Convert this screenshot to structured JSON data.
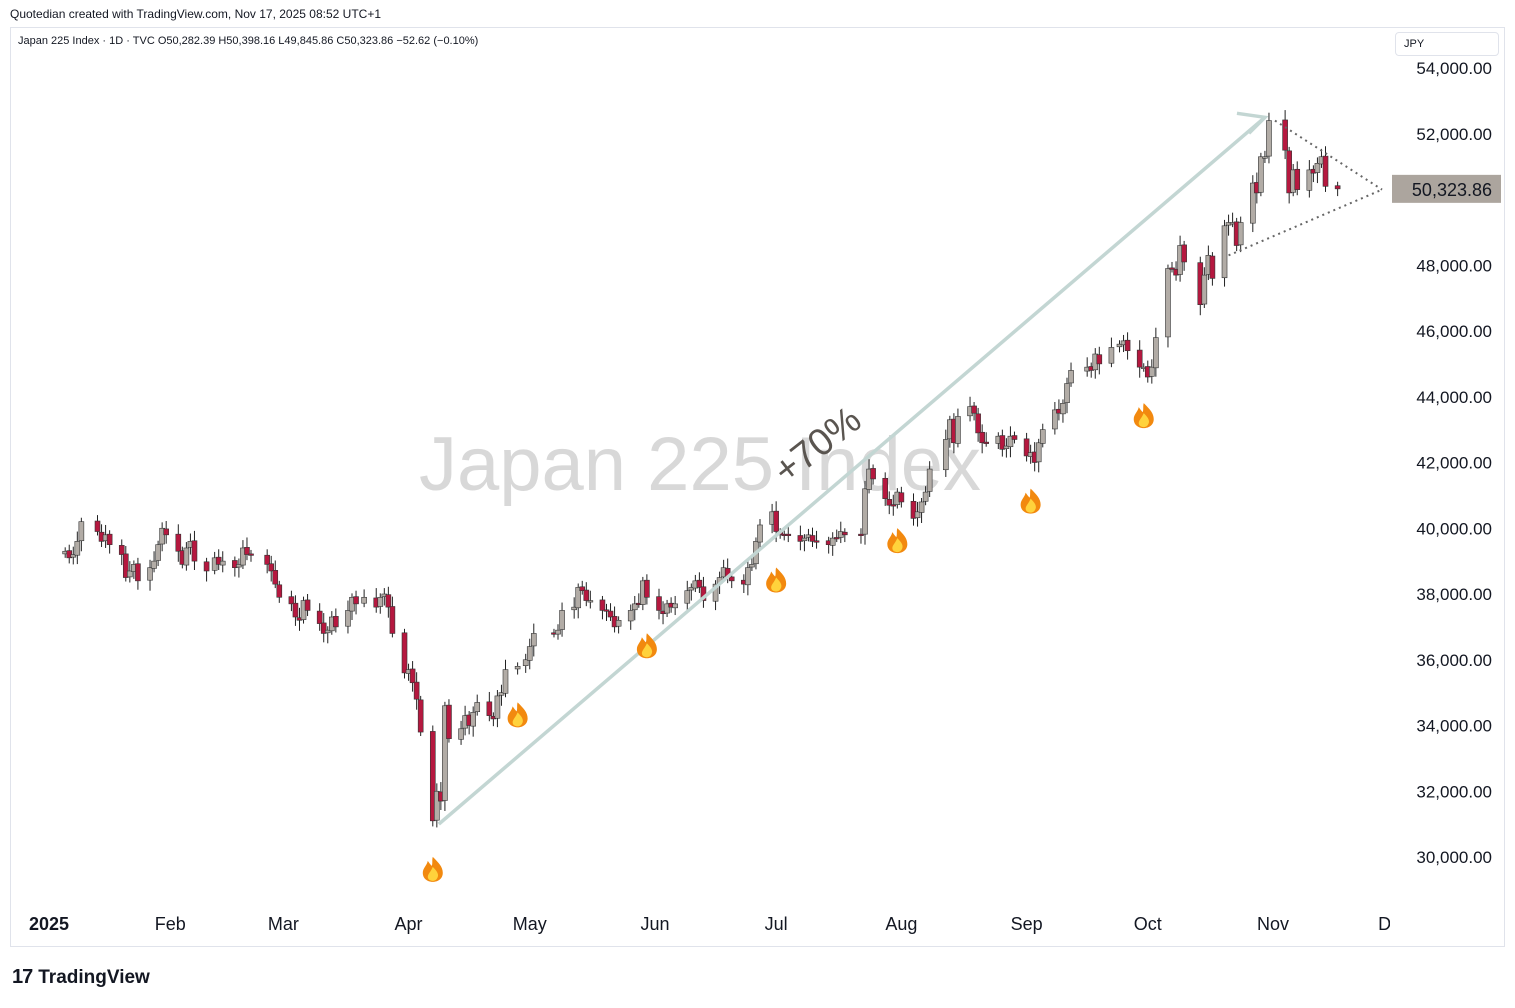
{
  "header": {
    "credit": "Quotedian created with TradingView.com, Nov 17, 2025 08:52 UTC+1",
    "legend": "Japan 225 Index · 1D · TVC  O50,282.39  H50,398.16  L49,845.86  C50,323.86  −52.62 (−0.10%)",
    "currency_button": "JPY"
  },
  "footer": {
    "brand": "TradingView",
    "logo_mark": "17"
  },
  "colors": {
    "up": "#b2aca6",
    "down": "#b5183f",
    "trend": "#c3d6d3",
    "watermark": "#d8d8d8",
    "price_tag": "#aca59e"
  },
  "chart_data": {
    "type": "candlestick",
    "title": "Japan 225 Index",
    "x_labels": [
      "2025",
      "Feb",
      "Mar",
      "Apr",
      "May",
      "Jun",
      "Jul",
      "Aug",
      "Sep",
      "Oct",
      "Nov",
      "Dec"
    ],
    "y_ticks": [
      "54,000.00",
      "52,000.00",
      "48,000.00",
      "46,000.00",
      "44,000.00",
      "42,000.00",
      "40,000.00",
      "38,000.00",
      "36,000.00",
      "34,000.00",
      "32,000.00",
      "30,000.00"
    ],
    "ylim": [
      28000,
      55200
    ],
    "last_price": 50323.86,
    "last_price_label": "50,323.86",
    "annotation": "+70%",
    "trend_line": {
      "from": [
        "2025-04-07",
        31000
      ],
      "to": [
        "2025-10-31",
        52500
      ]
    },
    "triangle": {
      "apex": [
        "2025-11-28",
        50300
      ],
      "upper_from": [
        "2025-10-31",
        52400
      ],
      "lower_from": [
        "2025-10-21",
        48300
      ]
    },
    "fire_markers": [
      "2025-04-07",
      "2025-04-28",
      "2025-05-30",
      "2025-07-01",
      "2025-07-31",
      "2025-09-02",
      "2025-09-30"
    ],
    "closes": [
      [
        "2025-01-06",
        39300
      ],
      [
        "2025-01-07",
        39100
      ],
      [
        "2025-01-08",
        39200
      ],
      [
        "2025-01-09",
        39600
      ],
      [
        "2025-01-10",
        40200
      ],
      [
        "2025-01-14",
        39900
      ],
      [
        "2025-01-15",
        39600
      ],
      [
        "2025-01-16",
        39800
      ],
      [
        "2025-01-17",
        39500
      ],
      [
        "2025-01-20",
        39200
      ],
      [
        "2025-01-21",
        38500
      ],
      [
        "2025-01-22",
        38700
      ],
      [
        "2025-01-23",
        38900
      ],
      [
        "2025-01-24",
        38400
      ],
      [
        "2025-01-27",
        38800
      ],
      [
        "2025-01-28",
        39000
      ],
      [
        "2025-01-29",
        39500
      ],
      [
        "2025-01-30",
        40000
      ],
      [
        "2025-01-31",
        39800
      ],
      [
        "2025-02-03",
        39300
      ],
      [
        "2025-02-04",
        38900
      ],
      [
        "2025-02-05",
        39400
      ],
      [
        "2025-02-06",
        39600
      ],
      [
        "2025-02-07",
        39000
      ],
      [
        "2025-02-10",
        38700
      ],
      [
        "2025-02-12",
        39100
      ],
      [
        "2025-02-13",
        38900
      ],
      [
        "2025-02-14",
        39000
      ],
      [
        "2025-02-17",
        38800
      ],
      [
        "2025-02-18",
        38900
      ],
      [
        "2025-02-19",
        39400
      ],
      [
        "2025-02-20",
        39200
      ],
      [
        "2025-02-21",
        39200
      ],
      [
        "2025-02-25",
        38900
      ],
      [
        "2025-02-26",
        38700
      ],
      [
        "2025-02-27",
        38300
      ],
      [
        "2025-02-28",
        37900
      ],
      [
        "2025-03-03",
        37700
      ],
      [
        "2025-03-04",
        37300
      ],
      [
        "2025-03-05",
        37200
      ],
      [
        "2025-03-06",
        37800
      ],
      [
        "2025-03-07",
        37500
      ],
      [
        "2025-03-10",
        37100
      ],
      [
        "2025-03-11",
        36800
      ],
      [
        "2025-03-12",
        36900
      ],
      [
        "2025-03-13",
        37300
      ],
      [
        "2025-03-14",
        37000
      ],
      [
        "2025-03-17",
        37500
      ],
      [
        "2025-03-18",
        37900
      ],
      [
        "2025-03-19",
        37700
      ],
      [
        "2025-03-21",
        37900
      ],
      [
        "2025-03-24",
        37600
      ],
      [
        "2025-03-25",
        37900
      ],
      [
        "2025-03-26",
        38000
      ],
      [
        "2025-03-27",
        37600
      ],
      [
        "2025-03-28",
        36800
      ],
      [
        "2025-03-31",
        35600
      ],
      [
        "2025-04-01",
        35700
      ],
      [
        "2025-04-02",
        35300
      ],
      [
        "2025-04-03",
        34800
      ],
      [
        "2025-04-04",
        33800
      ],
      [
        "2025-04-07",
        31100
      ],
      [
        "2025-04-08",
        32000
      ],
      [
        "2025-04-09",
        31700
      ],
      [
        "2025-04-10",
        34600
      ],
      [
        "2025-04-11",
        33600
      ],
      [
        "2025-04-14",
        33900
      ],
      [
        "2025-04-15",
        34300
      ],
      [
        "2025-04-16",
        34000
      ],
      [
        "2025-04-17",
        34400
      ],
      [
        "2025-04-18",
        34700
      ],
      [
        "2025-04-21",
        34300
      ],
      [
        "2025-04-22",
        34200
      ],
      [
        "2025-04-23",
        34900
      ],
      [
        "2025-04-24",
        35000
      ],
      [
        "2025-04-25",
        35700
      ],
      [
        "2025-04-28",
        35800
      ],
      [
        "2025-04-30",
        36000
      ],
      [
        "2025-05-01",
        36400
      ],
      [
        "2025-05-02",
        36800
      ],
      [
        "2025-05-07",
        36800
      ],
      [
        "2025-05-08",
        36900
      ],
      [
        "2025-05-09",
        37500
      ],
      [
        "2025-05-12",
        37600
      ],
      [
        "2025-05-13",
        38200
      ],
      [
        "2025-05-14",
        38100
      ],
      [
        "2025-05-15",
        37800
      ],
      [
        "2025-05-16",
        37800
      ],
      [
        "2025-05-19",
        37500
      ],
      [
        "2025-05-20",
        37500
      ],
      [
        "2025-05-21",
        37300
      ],
      [
        "2025-05-22",
        37000
      ],
      [
        "2025-05-23",
        37200
      ],
      [
        "2025-05-26",
        37500
      ],
      [
        "2025-05-27",
        37700
      ],
      [
        "2025-05-28",
        37700
      ],
      [
        "2025-05-29",
        38400
      ],
      [
        "2025-05-30",
        37900
      ],
      [
        "2025-06-02",
        37500
      ],
      [
        "2025-06-03",
        37400
      ],
      [
        "2025-06-04",
        37700
      ],
      [
        "2025-06-05",
        37600
      ],
      [
        "2025-06-06",
        37700
      ],
      [
        "2025-06-09",
        38100
      ],
      [
        "2025-06-10",
        38200
      ],
      [
        "2025-06-11",
        38400
      ],
      [
        "2025-06-12",
        38200
      ],
      [
        "2025-06-13",
        37800
      ],
      [
        "2025-06-16",
        38300
      ],
      [
        "2025-06-17",
        38500
      ],
      [
        "2025-06-18",
        38800
      ],
      [
        "2025-06-19",
        38500
      ],
      [
        "2025-06-20",
        38400
      ],
      [
        "2025-06-23",
        38300
      ],
      [
        "2025-06-24",
        38800
      ],
      [
        "2025-06-25",
        38900
      ],
      [
        "2025-06-26",
        39600
      ],
      [
        "2025-06-27",
        40100
      ],
      [
        "2025-06-30",
        40500
      ],
      [
        "2025-07-01",
        39900
      ],
      [
        "2025-07-02",
        39800
      ],
      [
        "2025-07-03",
        39800
      ],
      [
        "2025-07-04",
        39800
      ],
      [
        "2025-07-07",
        39600
      ],
      [
        "2025-07-08",
        39700
      ],
      [
        "2025-07-09",
        39800
      ],
      [
        "2025-07-10",
        39600
      ],
      [
        "2025-07-11",
        39600
      ],
      [
        "2025-07-14",
        39500
      ],
      [
        "2025-07-15",
        39700
      ],
      [
        "2025-07-16",
        39700
      ],
      [
        "2025-07-17",
        39900
      ],
      [
        "2025-07-18",
        39800
      ],
      [
        "2025-07-22",
        39800
      ],
      [
        "2025-07-23",
        41200
      ],
      [
        "2025-07-24",
        41800
      ],
      [
        "2025-07-25",
        41500
      ],
      [
        "2025-07-28",
        40900
      ],
      [
        "2025-07-29",
        40700
      ],
      [
        "2025-07-30",
        40700
      ],
      [
        "2025-07-31",
        41100
      ],
      [
        "2025-08-01",
        40800
      ],
      [
        "2025-08-04",
        40300
      ],
      [
        "2025-08-05",
        40500
      ],
      [
        "2025-08-06",
        40800
      ],
      [
        "2025-08-07",
        41100
      ],
      [
        "2025-08-08",
        41800
      ],
      [
        "2025-08-12",
        42700
      ],
      [
        "2025-08-13",
        43300
      ],
      [
        "2025-08-14",
        42600
      ],
      [
        "2025-08-15",
        43400
      ],
      [
        "2025-08-18",
        43700
      ],
      [
        "2025-08-19",
        43500
      ],
      [
        "2025-08-20",
        42900
      ],
      [
        "2025-08-21",
        42600
      ],
      [
        "2025-08-22",
        42600
      ],
      [
        "2025-08-25",
        42800
      ],
      [
        "2025-08-26",
        42400
      ],
      [
        "2025-08-27",
        42500
      ],
      [
        "2025-08-28",
        42800
      ],
      [
        "2025-08-29",
        42700
      ],
      [
        "2025-09-01",
        42200
      ],
      [
        "2025-09-02",
        42300
      ],
      [
        "2025-09-03",
        42000
      ],
      [
        "2025-09-04",
        42600
      ],
      [
        "2025-09-05",
        43000
      ],
      [
        "2025-09-08",
        43600
      ],
      [
        "2025-09-09",
        43500
      ],
      [
        "2025-09-10",
        43800
      ],
      [
        "2025-09-11",
        44400
      ],
      [
        "2025-09-12",
        44800
      ],
      [
        "2025-09-16",
        44900
      ],
      [
        "2025-09-17",
        44800
      ],
      [
        "2025-09-18",
        45300
      ],
      [
        "2025-09-19",
        45000
      ],
      [
        "2025-09-22",
        45500
      ],
      [
        "2025-09-24",
        45600
      ],
      [
        "2025-09-25",
        45700
      ],
      [
        "2025-09-26",
        45400
      ],
      [
        "2025-09-29",
        44900
      ],
      [
        "2025-09-30",
        44900
      ],
      [
        "2025-10-01",
        44600
      ],
      [
        "2025-10-02",
        44900
      ],
      [
        "2025-10-03",
        45800
      ],
      [
        "2025-10-06",
        47900
      ],
      [
        "2025-10-07",
        47900
      ],
      [
        "2025-10-08",
        47700
      ],
      [
        "2025-10-09",
        48600
      ],
      [
        "2025-10-10",
        48100
      ],
      [
        "2025-10-14",
        46800
      ],
      [
        "2025-10-15",
        47700
      ],
      [
        "2025-10-16",
        48300
      ],
      [
        "2025-10-17",
        47600
      ],
      [
        "2025-10-20",
        49200
      ],
      [
        "2025-10-21",
        49300
      ],
      [
        "2025-10-22",
        49300
      ],
      [
        "2025-10-23",
        48600
      ],
      [
        "2025-10-24",
        49300
      ],
      [
        "2025-10-27",
        50500
      ],
      [
        "2025-10-28",
        50200
      ],
      [
        "2025-10-29",
        51300
      ],
      [
        "2025-10-30",
        51300
      ],
      [
        "2025-10-31",
        52400
      ],
      [
        "2025-11-04",
        51500
      ],
      [
        "2025-11-05",
        50200
      ],
      [
        "2025-11-06",
        50900
      ],
      [
        "2025-11-07",
        50300
      ],
      [
        "2025-11-10",
        50900
      ],
      [
        "2025-11-11",
        50800
      ],
      [
        "2025-11-12",
        51100
      ],
      [
        "2025-11-13",
        51300
      ],
      [
        "2025-11-14",
        50400
      ],
      [
        "2025-11-17",
        50323.86
      ]
    ]
  }
}
